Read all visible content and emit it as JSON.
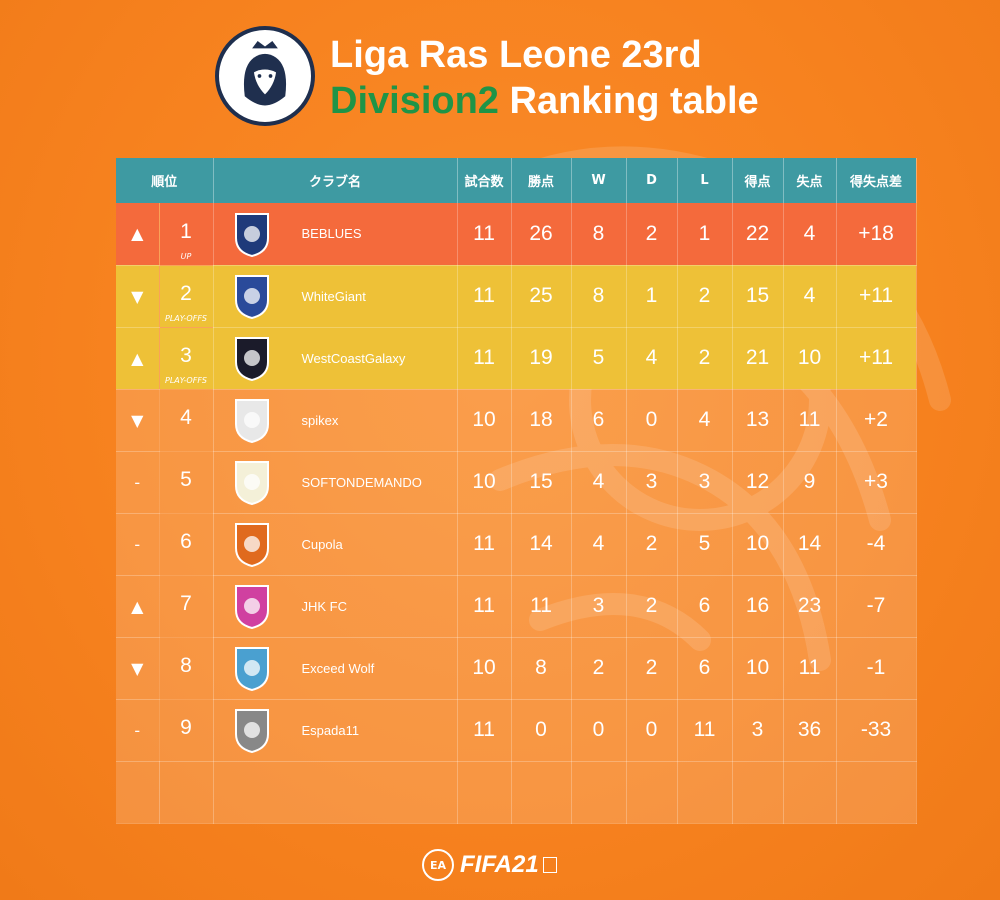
{
  "title": {
    "line1": "Liga Ras Leone 23rd",
    "line2_highlight": "Division2",
    "line2_rest": " Ranking table"
  },
  "logo": {
    "icon": "lion-crest-icon",
    "text": "Liga Ras Leone"
  },
  "columns": [
    "順位",
    "クラブ名",
    "試合数",
    "勝点",
    "W",
    "D",
    "L",
    "得点",
    "失点",
    "得失点差"
  ],
  "rows": [
    {
      "trend": "▲",
      "rank": "1",
      "note": "UP",
      "club": "BEBLUES",
      "played": "11",
      "points": "26",
      "w": "8",
      "d": "2",
      "l": "1",
      "gf": "22",
      "ga": "4",
      "gd": "+18",
      "style": "promo",
      "crest_color": "#1f3a7a"
    },
    {
      "trend": "▼",
      "rank": "2",
      "note": "PLAY-OFFS",
      "club": "WhiteGiant",
      "played": "11",
      "points": "25",
      "w": "8",
      "d": "1",
      "l": "2",
      "gf": "15",
      "ga": "4",
      "gd": "+11",
      "style": "playoff",
      "crest_color": "#2a4a9a"
    },
    {
      "trend": "▲",
      "rank": "3",
      "note": "PLAY-OFFS",
      "club": "WestCoastGalaxy",
      "played": "11",
      "points": "19",
      "w": "5",
      "d": "4",
      "l": "2",
      "gf": "21",
      "ga": "10",
      "gd": "+11",
      "style": "playoff",
      "crest_color": "#1b1b2a"
    },
    {
      "trend": "▼",
      "rank": "4",
      "note": "",
      "club": "spikex",
      "played": "10",
      "points": "18",
      "w": "6",
      "d": "0",
      "l": "4",
      "gf": "13",
      "ga": "11",
      "gd": "+2",
      "style": "normal",
      "crest_color": "#e8e8e8"
    },
    {
      "trend": "-",
      "rank": "5",
      "note": "",
      "club": "SOFTONDEMANDO",
      "played": "10",
      "points": "15",
      "w": "4",
      "d": "3",
      "l": "3",
      "gf": "12",
      "ga": "9",
      "gd": "+3",
      "style": "normal",
      "crest_color": "#f4f0d8"
    },
    {
      "trend": "-",
      "rank": "6",
      "note": "",
      "club": "Cupola",
      "played": "11",
      "points": "14",
      "w": "4",
      "d": "2",
      "l": "5",
      "gf": "10",
      "ga": "14",
      "gd": "-4",
      "style": "normal",
      "crest_color": "#e06a1e"
    },
    {
      "trend": "▲",
      "rank": "7",
      "note": "",
      "club": "JHK FC",
      "played": "11",
      "points": "11",
      "w": "3",
      "d": "2",
      "l": "6",
      "gf": "16",
      "ga": "23",
      "gd": "-7",
      "style": "normal",
      "crest_color": "#d040a0"
    },
    {
      "trend": "▼",
      "rank": "8",
      "note": "",
      "club": "Exceed Wolf",
      "played": "10",
      "points": "8",
      "w": "2",
      "d": "2",
      "l": "6",
      "gf": "10",
      "ga": "11",
      "gd": "-1",
      "style": "normal",
      "crest_color": "#4aa0d0"
    },
    {
      "trend": "-",
      "rank": "9",
      "note": "",
      "club": "Espada11",
      "played": "11",
      "points": "0",
      "w": "0",
      "d": "0",
      "l": "11",
      "gf": "3",
      "ga": "36",
      "gd": "-33",
      "style": "normal",
      "crest_color": "#888888"
    }
  ],
  "footer": {
    "ea": "EA",
    "brand": "FIFA21"
  },
  "colors": {
    "header": "#3e9aa2",
    "promo": "#f46a3c",
    "playoff": "#eec137",
    "accent_green": "#1f9447",
    "background": "#f7821f"
  }
}
